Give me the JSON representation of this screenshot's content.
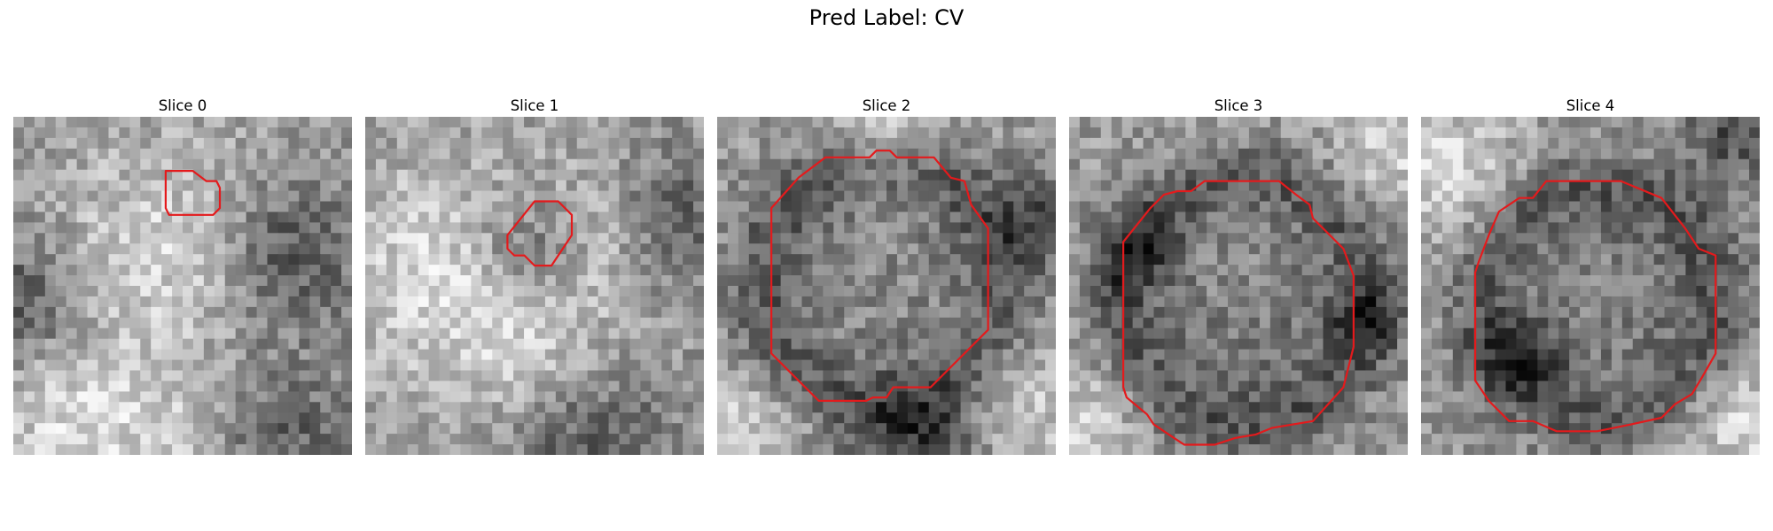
{
  "figure": {
    "title": "Pred Label: CV",
    "panels": [
      {
        "title": "Slice 0",
        "bright_blobs": [
          [
            0.45,
            0.4,
            0.35
          ],
          [
            0.18,
            0.9,
            0.3
          ],
          [
            0.55,
            0.95,
            0.25
          ]
        ],
        "dark_blobs": [
          [
            0.82,
            0.4,
            0.26
          ],
          [
            0.75,
            0.97,
            0.3
          ],
          [
            0.02,
            0.55,
            0.22
          ]
        ],
        "contour": [
          [
            0.45,
            0.16
          ],
          [
            0.53,
            0.16
          ],
          [
            0.57,
            0.19
          ],
          [
            0.6,
            0.19
          ],
          [
            0.61,
            0.21
          ],
          [
            0.61,
            0.27
          ],
          [
            0.59,
            0.29
          ],
          [
            0.46,
            0.29
          ],
          [
            0.45,
            0.27
          ]
        ]
      },
      {
        "title": "Slice 1",
        "bright_blobs": [
          [
            0.2,
            0.45,
            0.35
          ],
          [
            0.5,
            0.7,
            0.3
          ],
          [
            0.7,
            0.35,
            0.25
          ]
        ],
        "dark_blobs": [
          [
            0.9,
            0.3,
            0.25
          ],
          [
            0.65,
            0.97,
            0.32
          ],
          [
            0.5,
            0.4,
            0.2
          ]
        ],
        "contour": [
          [
            0.5,
            0.25
          ],
          [
            0.57,
            0.25
          ],
          [
            0.61,
            0.29
          ],
          [
            0.61,
            0.35
          ],
          [
            0.55,
            0.44
          ],
          [
            0.5,
            0.44
          ],
          [
            0.47,
            0.41
          ],
          [
            0.44,
            0.41
          ],
          [
            0.42,
            0.39
          ],
          [
            0.42,
            0.35
          ]
        ]
      },
      {
        "title": "Slice 2",
        "bright_blobs": [
          [
            0.5,
            0.5,
            0.32
          ],
          [
            0.9,
            0.85,
            0.22
          ],
          [
            0.1,
            0.9,
            0.2
          ],
          [
            0.5,
            0.03,
            0.2
          ]
        ],
        "dark_blobs": [
          [
            0.5,
            0.5,
            0.48
          ],
          [
            0.6,
            0.97,
            0.22
          ],
          [
            0.95,
            0.3,
            0.15
          ]
        ],
        "ring": [
          0.49,
          0.5,
          0.36,
          0.13
        ],
        "contour": [
          [
            0.32,
            0.12
          ],
          [
            0.45,
            0.12
          ],
          [
            0.47,
            0.1
          ],
          [
            0.51,
            0.1
          ],
          [
            0.53,
            0.12
          ],
          [
            0.64,
            0.12
          ],
          [
            0.69,
            0.18
          ],
          [
            0.73,
            0.19
          ],
          [
            0.75,
            0.26
          ],
          [
            0.8,
            0.33
          ],
          [
            0.8,
            0.63
          ],
          [
            0.63,
            0.8
          ],
          [
            0.52,
            0.8
          ],
          [
            0.5,
            0.83
          ],
          [
            0.46,
            0.83
          ],
          [
            0.44,
            0.84
          ],
          [
            0.3,
            0.84
          ],
          [
            0.16,
            0.7
          ],
          [
            0.16,
            0.27
          ],
          [
            0.24,
            0.18
          ]
        ]
      },
      {
        "title": "Slice 3",
        "bright_blobs": [
          [
            0.5,
            0.5,
            0.25
          ],
          [
            0.05,
            0.9,
            0.2
          ],
          [
            0.95,
            0.1,
            0.2
          ]
        ],
        "dark_blobs": [
          [
            0.52,
            0.55,
            0.44
          ],
          [
            0.2,
            0.4,
            0.14
          ],
          [
            0.88,
            0.6,
            0.12
          ]
        ],
        "ring": [
          0.52,
          0.55,
          0.37,
          0.12
        ],
        "contour": [
          [
            0.4,
            0.19
          ],
          [
            0.62,
            0.19
          ],
          [
            0.67,
            0.23
          ],
          [
            0.71,
            0.26
          ],
          [
            0.72,
            0.3
          ],
          [
            0.81,
            0.39
          ],
          [
            0.84,
            0.47
          ],
          [
            0.84,
            0.68
          ],
          [
            0.81,
            0.8
          ],
          [
            0.72,
            0.9
          ],
          [
            0.6,
            0.92
          ],
          [
            0.55,
            0.94
          ],
          [
            0.49,
            0.95
          ],
          [
            0.43,
            0.97
          ],
          [
            0.34,
            0.97
          ],
          [
            0.31,
            0.95
          ],
          [
            0.25,
            0.91
          ],
          [
            0.23,
            0.88
          ],
          [
            0.17,
            0.83
          ],
          [
            0.16,
            0.8
          ],
          [
            0.16,
            0.37
          ],
          [
            0.24,
            0.27
          ],
          [
            0.28,
            0.23
          ],
          [
            0.32,
            0.22
          ],
          [
            0.36,
            0.22
          ]
        ]
      },
      {
        "title": "Slice 4",
        "bright_blobs": [
          [
            0.5,
            0.55,
            0.24
          ],
          [
            0.08,
            0.15,
            0.25
          ],
          [
            0.95,
            0.9,
            0.22
          ]
        ],
        "dark_blobs": [
          [
            0.53,
            0.55,
            0.42
          ],
          [
            0.92,
            0.05,
            0.18
          ],
          [
            0.3,
            0.7,
            0.15
          ]
        ],
        "ring": [
          0.53,
          0.55,
          0.35,
          0.12
        ],
        "contour": [
          [
            0.37,
            0.19
          ],
          [
            0.59,
            0.19
          ],
          [
            0.71,
            0.24
          ],
          [
            0.78,
            0.33
          ],
          [
            0.82,
            0.39
          ],
          [
            0.87,
            0.41
          ],
          [
            0.87,
            0.7
          ],
          [
            0.83,
            0.77
          ],
          [
            0.8,
            0.82
          ],
          [
            0.75,
            0.85
          ],
          [
            0.71,
            0.89
          ],
          [
            0.62,
            0.91
          ],
          [
            0.52,
            0.93
          ],
          [
            0.4,
            0.93
          ],
          [
            0.33,
            0.9
          ],
          [
            0.26,
            0.9
          ],
          [
            0.2,
            0.84
          ],
          [
            0.16,
            0.78
          ],
          [
            0.16,
            0.46
          ],
          [
            0.17,
            0.43
          ],
          [
            0.2,
            0.35
          ],
          [
            0.23,
            0.28
          ],
          [
            0.29,
            0.24
          ],
          [
            0.33,
            0.24
          ]
        ]
      }
    ]
  },
  "colors": {
    "contour": "#e41a1c",
    "background": "#ffffff"
  }
}
